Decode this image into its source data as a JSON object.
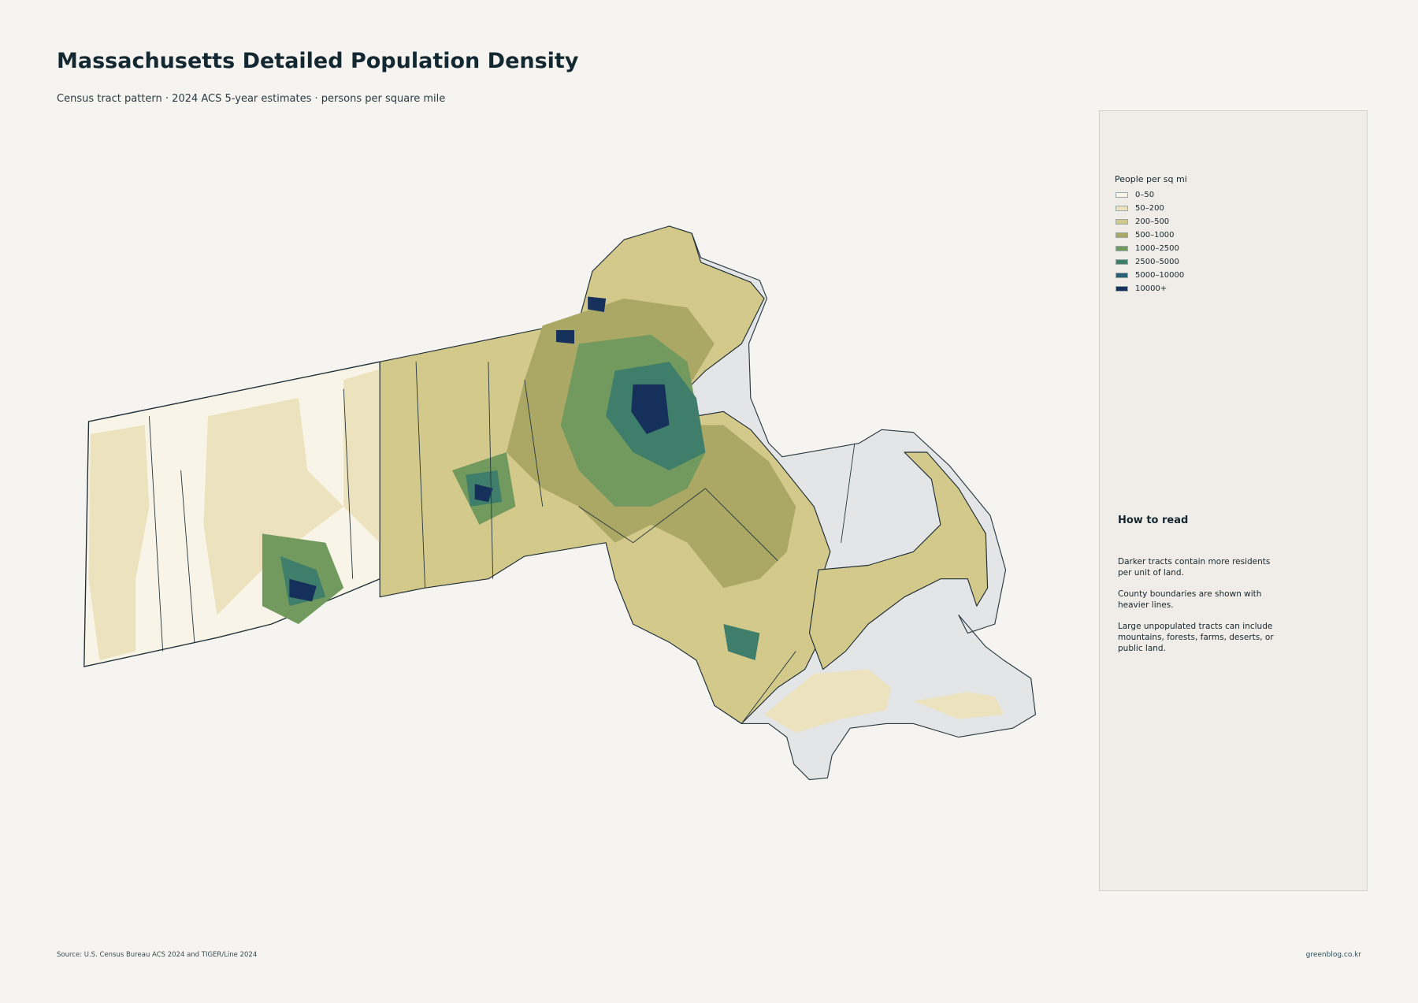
{
  "header": {
    "title": "Massachusetts Detailed Population Density",
    "subtitle": "Census tract pattern · 2024 ACS 5-year estimates · persons per square mile"
  },
  "legend": {
    "title": "People per sq mi",
    "items": [
      {
        "label": "0–50",
        "color": "#f8f5e8"
      },
      {
        "label": "50–200",
        "color": "#ece2bd"
      },
      {
        "label": "200–500",
        "color": "#d3c98b"
      },
      {
        "label": "500–1000",
        "color": "#aba866"
      },
      {
        "label": "1000–2500",
        "color": "#729a5e"
      },
      {
        "label": "2500–5000",
        "color": "#3f7e6a"
      },
      {
        "label": "5000–10000",
        "color": "#265f73"
      },
      {
        "label": "10000+",
        "color": "#15305a"
      }
    ]
  },
  "how_to_read": {
    "title": "How to read",
    "paragraphs": [
      "Darker tracts contain more residents per unit of land.",
      "County boundaries are shown with heavier lines.",
      "Large unpopulated tracts can include mountains, forests, farms, deserts, or public land."
    ]
  },
  "footer": {
    "source": "Source: U.S. Census Bureau ACS 2024 and TIGER/Line 2024",
    "credit": "greenblog.co.kr"
  }
}
